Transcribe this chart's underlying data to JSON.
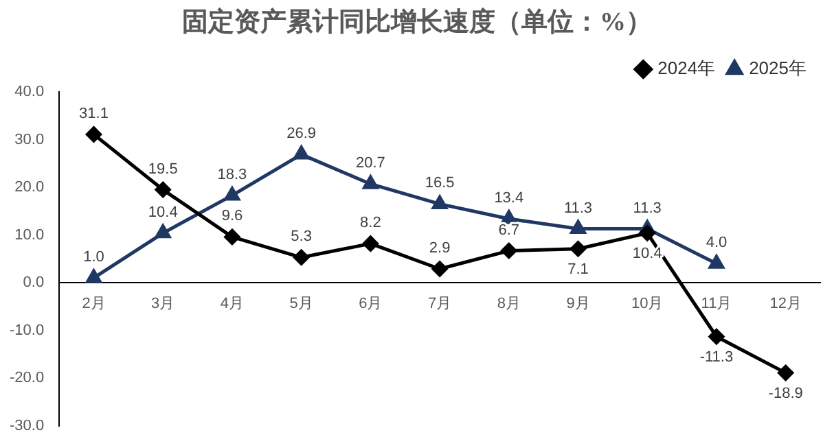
{
  "chart_data": {
    "type": "line",
    "title": "固定资产累计同比增长速度（单位：%）",
    "categories": [
      "2月",
      "3月",
      "4月",
      "5月",
      "6月",
      "7月",
      "8月",
      "9月",
      "10月",
      "11月",
      "12月"
    ],
    "series": [
      {
        "name": "2024年",
        "color": "#000000",
        "marker": "diamond",
        "values": [
          31.1,
          19.5,
          9.6,
          5.3,
          8.2,
          2.9,
          6.7,
          7.1,
          10.4,
          -11.3,
          -18.9
        ],
        "value_labels": [
          "31.1",
          "19.5",
          "9.6",
          "5.3",
          "8.2",
          "2.9",
          "6.7",
          "7.1",
          "10.4",
          "-11.3",
          "-18.9"
        ]
      },
      {
        "name": "2025年",
        "color": "#203864",
        "marker": "triangle",
        "values": [
          1.0,
          10.4,
          18.3,
          26.9,
          20.7,
          16.5,
          13.4,
          11.3,
          11.3,
          4.0,
          null
        ],
        "value_labels": [
          "1.0",
          "10.4",
          "18.3",
          "26.9",
          "20.7",
          "16.5",
          "13.4",
          "11.3",
          "11.3",
          "4.0",
          null
        ]
      }
    ],
    "ylim": [
      -30,
      40
    ],
    "yticks": [
      {
        "value": 40,
        "label": "40.0"
      },
      {
        "value": 30,
        "label": "30.0"
      },
      {
        "value": 20,
        "label": "20.0"
      },
      {
        "value": 10,
        "label": "10.0"
      },
      {
        "value": 0,
        "label": "0.0"
      },
      {
        "value": -10,
        "label": "-10.0"
      },
      {
        "value": -20,
        "label": "-20.0"
      },
      {
        "value": -30,
        "label": "-30.0"
      }
    ],
    "grid": false,
    "legend": "top right"
  }
}
